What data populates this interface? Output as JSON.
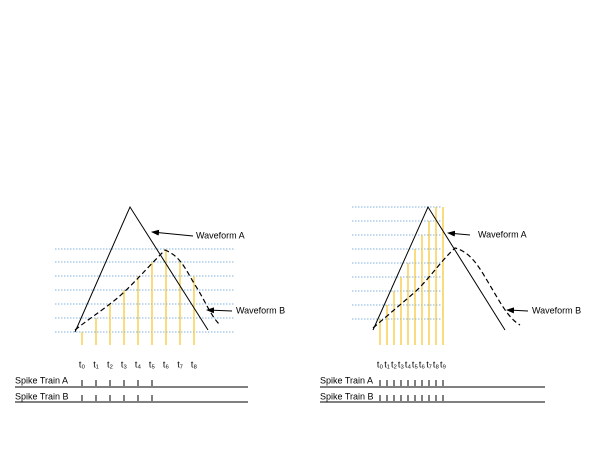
{
  "left": {
    "waveform_a": "Waveform A",
    "waveform_b": "Waveform B",
    "time_labels": [
      "t₀",
      "t₁",
      "t₂",
      "t₃",
      "t₄",
      "t₅",
      "t₆",
      "t₇",
      "t₈"
    ],
    "spike_train_a": "Spike Train A",
    "spike_train_b": "Spike Train B"
  },
  "right": {
    "waveform_a": "Waveform A",
    "waveform_b": "Waveform B",
    "time_labels": [
      "t₀",
      "t₁",
      "t₂",
      "t₃",
      "t₄",
      "t₅",
      "t₆",
      "t₇",
      "t₈",
      "t₉"
    ],
    "spike_train_a": "Spike Train A",
    "spike_train_b": "Spike Train B"
  }
}
